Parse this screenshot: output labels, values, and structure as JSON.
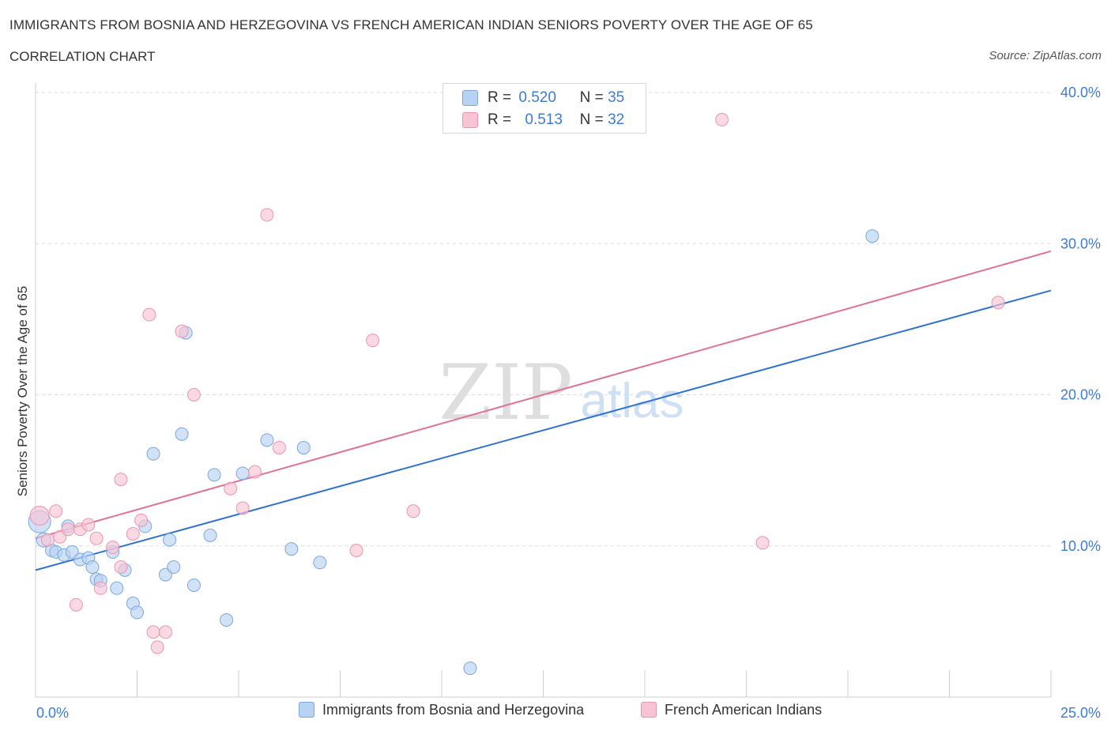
{
  "header": {
    "title": "IMMIGRANTS FROM BOSNIA AND HERZEGOVINA VS FRENCH AMERICAN INDIAN SENIORS POVERTY OVER THE AGE OF 65",
    "subtitle": "CORRELATION CHART",
    "source": "Source: ZipAtlas.com"
  },
  "watermark": {
    "zip": "ZIP",
    "atlas": "atlas"
  },
  "legend": {
    "series1": {
      "r_label": "R =",
      "r_value": "0.520",
      "n_label": "N =",
      "n_value": "35"
    },
    "series2": {
      "r_label": "R =",
      "r_value": "0.513",
      "n_label": "N =",
      "n_value": "32"
    }
  },
  "colors": {
    "blue_fill": "#b8d2f3",
    "blue_stroke": "#7aa7e0",
    "blue_line": "#2f72d0",
    "pink_fill": "#f8c4d4",
    "pink_stroke": "#ea94b0",
    "pink_line": "#e07097",
    "tick_label": "#3d7bd6"
  },
  "chart_data": {
    "type": "scatter",
    "title": "IMMIGRANTS FROM BOSNIA AND HERZEGOVINA VS FRENCH AMERICAN INDIAN SENIORS POVERTY OVER THE AGE OF 65",
    "xlabel": "",
    "ylabel": "Seniors Poverty Over the Age of 65",
    "xlim": [
      0,
      25
    ],
    "ylim": [
      0,
      40
    ],
    "x_tick_labels": [
      "0.0%",
      "25.0%"
    ],
    "y_ticks": [
      10,
      20,
      30,
      40
    ],
    "y_tick_labels": [
      "10.0%",
      "20.0%",
      "30.0%",
      "40.0%"
    ],
    "grid": true,
    "series": [
      {
        "name": "Immigrants from Bosnia and Herzegovina",
        "color": "blue",
        "trend": {
          "x": [
            0,
            25
          ],
          "y": [
            8.4,
            26.9
          ]
        },
        "points": [
          [
            0.1,
            11.6,
            14
          ],
          [
            0.2,
            10.4,
            9
          ],
          [
            0.4,
            9.7,
            8
          ],
          [
            0.5,
            9.6,
            8
          ],
          [
            0.7,
            9.4,
            8
          ],
          [
            0.8,
            11.3,
            8
          ],
          [
            0.9,
            9.6,
            8
          ],
          [
            1.1,
            9.1,
            8
          ],
          [
            1.3,
            9.2,
            8
          ],
          [
            1.4,
            8.6,
            8
          ],
          [
            1.5,
            7.8,
            8
          ],
          [
            1.6,
            7.7,
            8
          ],
          [
            1.9,
            9.6,
            8
          ],
          [
            2.0,
            7.2,
            8
          ],
          [
            2.2,
            8.4,
            8
          ],
          [
            2.4,
            6.2,
            8
          ],
          [
            2.5,
            5.6,
            8
          ],
          [
            2.7,
            11.3,
            8
          ],
          [
            2.9,
            16.1,
            8
          ],
          [
            3.2,
            8.1,
            8
          ],
          [
            3.3,
            10.4,
            8
          ],
          [
            3.4,
            8.6,
            8
          ],
          [
            3.6,
            17.4,
            8
          ],
          [
            3.7,
            24.1,
            8
          ],
          [
            3.9,
            7.4,
            8
          ],
          [
            4.3,
            10.7,
            8
          ],
          [
            4.4,
            14.7,
            8
          ],
          [
            4.7,
            5.1,
            8
          ],
          [
            5.1,
            14.8,
            8
          ],
          [
            5.7,
            17.0,
            8
          ],
          [
            6.3,
            9.8,
            8
          ],
          [
            6.6,
            16.5,
            8
          ],
          [
            7.0,
            8.9,
            8
          ],
          [
            10.7,
            1.9,
            8
          ],
          [
            20.6,
            30.5,
            8
          ]
        ]
      },
      {
        "name": "French American Indians",
        "color": "pink",
        "trend": {
          "x": [
            0,
            25
          ],
          "y": [
            10.5,
            29.5
          ]
        },
        "points": [
          [
            0.1,
            12.0,
            12
          ],
          [
            0.3,
            10.4,
            8
          ],
          [
            0.5,
            12.3,
            8
          ],
          [
            0.6,
            10.6,
            8
          ],
          [
            0.8,
            11.1,
            8
          ],
          [
            1.0,
            6.1,
            8
          ],
          [
            1.1,
            11.1,
            8
          ],
          [
            1.3,
            11.4,
            8
          ],
          [
            1.5,
            10.5,
            8
          ],
          [
            1.6,
            7.2,
            8
          ],
          [
            1.9,
            9.9,
            8
          ],
          [
            2.1,
            8.6,
            8
          ],
          [
            2.1,
            14.4,
            8
          ],
          [
            2.4,
            10.8,
            8
          ],
          [
            2.6,
            11.7,
            8
          ],
          [
            2.8,
            25.3,
            8
          ],
          [
            2.9,
            4.3,
            8
          ],
          [
            3.0,
            3.3,
            8
          ],
          [
            3.2,
            4.3,
            8
          ],
          [
            3.6,
            24.2,
            8
          ],
          [
            3.9,
            20.0,
            8
          ],
          [
            4.8,
            13.8,
            8
          ],
          [
            5.1,
            12.5,
            8
          ],
          [
            5.4,
            14.9,
            8
          ],
          [
            5.7,
            31.9,
            8
          ],
          [
            6.0,
            16.5,
            8
          ],
          [
            7.9,
            9.7,
            8
          ],
          [
            8.3,
            23.6,
            8
          ],
          [
            9.3,
            12.3,
            8
          ],
          [
            16.9,
            38.2,
            8
          ],
          [
            17.9,
            10.2,
            8
          ],
          [
            23.7,
            26.1,
            8
          ]
        ]
      }
    ]
  }
}
